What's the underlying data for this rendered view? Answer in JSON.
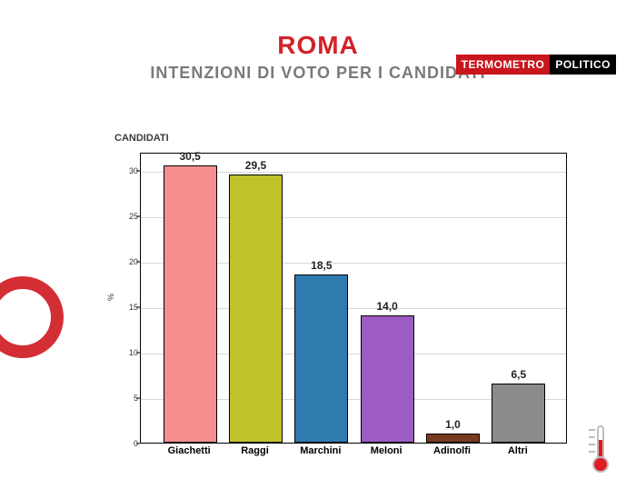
{
  "logo": {
    "left": "TERMOMETRO",
    "right": "POLITICO"
  },
  "title": "ROMA",
  "subtitle": "INTENZIONI DI VOTO PER I CANDIDATI",
  "chart": {
    "type": "bar",
    "series_title": "CANDIDATI",
    "y_axis_label": "%",
    "ylim": [
      0,
      32
    ],
    "yticks": [
      0,
      5,
      10,
      15,
      20,
      25,
      30
    ],
    "grid_color": "#d9d9d9",
    "background_color": "#ffffff",
    "border_color": "#000000",
    "bar_border_color": "#000000",
    "label_fontsize": 11,
    "value_fontsize": 12,
    "tick_fontsize": 9,
    "bars": [
      {
        "label": "Giachetti",
        "value": 30.5,
        "value_text": "30,5",
        "color": "#f58f8f"
      },
      {
        "label": "Raggi",
        "value": 29.5,
        "value_text": "29,5",
        "color": "#c1c22a"
      },
      {
        "label": "Marchini",
        "value": 18.5,
        "value_text": "18,5",
        "color": "#2f7bb0"
      },
      {
        "label": "Meloni",
        "value": 14.0,
        "value_text": "14,0",
        "color": "#9c5cc1"
      },
      {
        "label": "Adinolfi",
        "value": 1.0,
        "value_text": "1,0",
        "color": "#7a3a20"
      },
      {
        "label": "Altri",
        "value": 6.5,
        "value_text": "6,5",
        "color": "#8b8b8b"
      }
    ]
  },
  "colors": {
    "title": "#d2232a",
    "subtitle": "#7a7a7a",
    "logo_left_bg": "#c9151e",
    "logo_right_bg": "#000000",
    "logo_text": "#ffffff"
  }
}
